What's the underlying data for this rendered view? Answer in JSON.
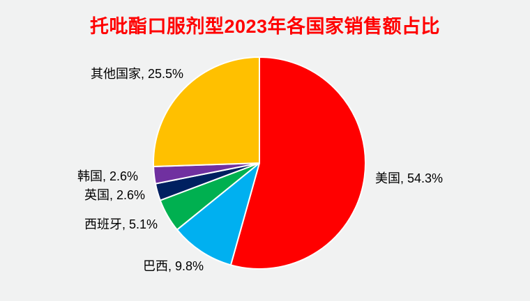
{
  "chart_data": {
    "type": "pie",
    "title": "托吡酯口服剂型2023年各国家销售额占比",
    "title_color": "#FF0000",
    "legend_position": "none",
    "start_angle_deg": 0,
    "direction": "clockwise",
    "units": "%",
    "slices": [
      {
        "id": "usa",
        "name": "美国",
        "value": 54.3,
        "label": "美国, 54.3%",
        "color": "#FF0000"
      },
      {
        "id": "brazil",
        "name": "巴西",
        "value": 9.8,
        "label": "巴西, 9.8%",
        "color": "#00B0F0"
      },
      {
        "id": "spain",
        "name": "西班牙",
        "value": 5.1,
        "label": "西班牙, 5.1%",
        "color": "#00B050"
      },
      {
        "id": "uk",
        "name": "英国",
        "value": 2.6,
        "label": "英国, 2.6%",
        "color": "#002060"
      },
      {
        "id": "korea",
        "name": "韩国",
        "value": 2.6,
        "label": "韩国, 2.6%",
        "color": "#7030A0"
      },
      {
        "id": "others",
        "name": "其他国家",
        "value": 25.5,
        "label": "其他国家, 25.5%",
        "color": "#FFC000"
      }
    ]
  }
}
